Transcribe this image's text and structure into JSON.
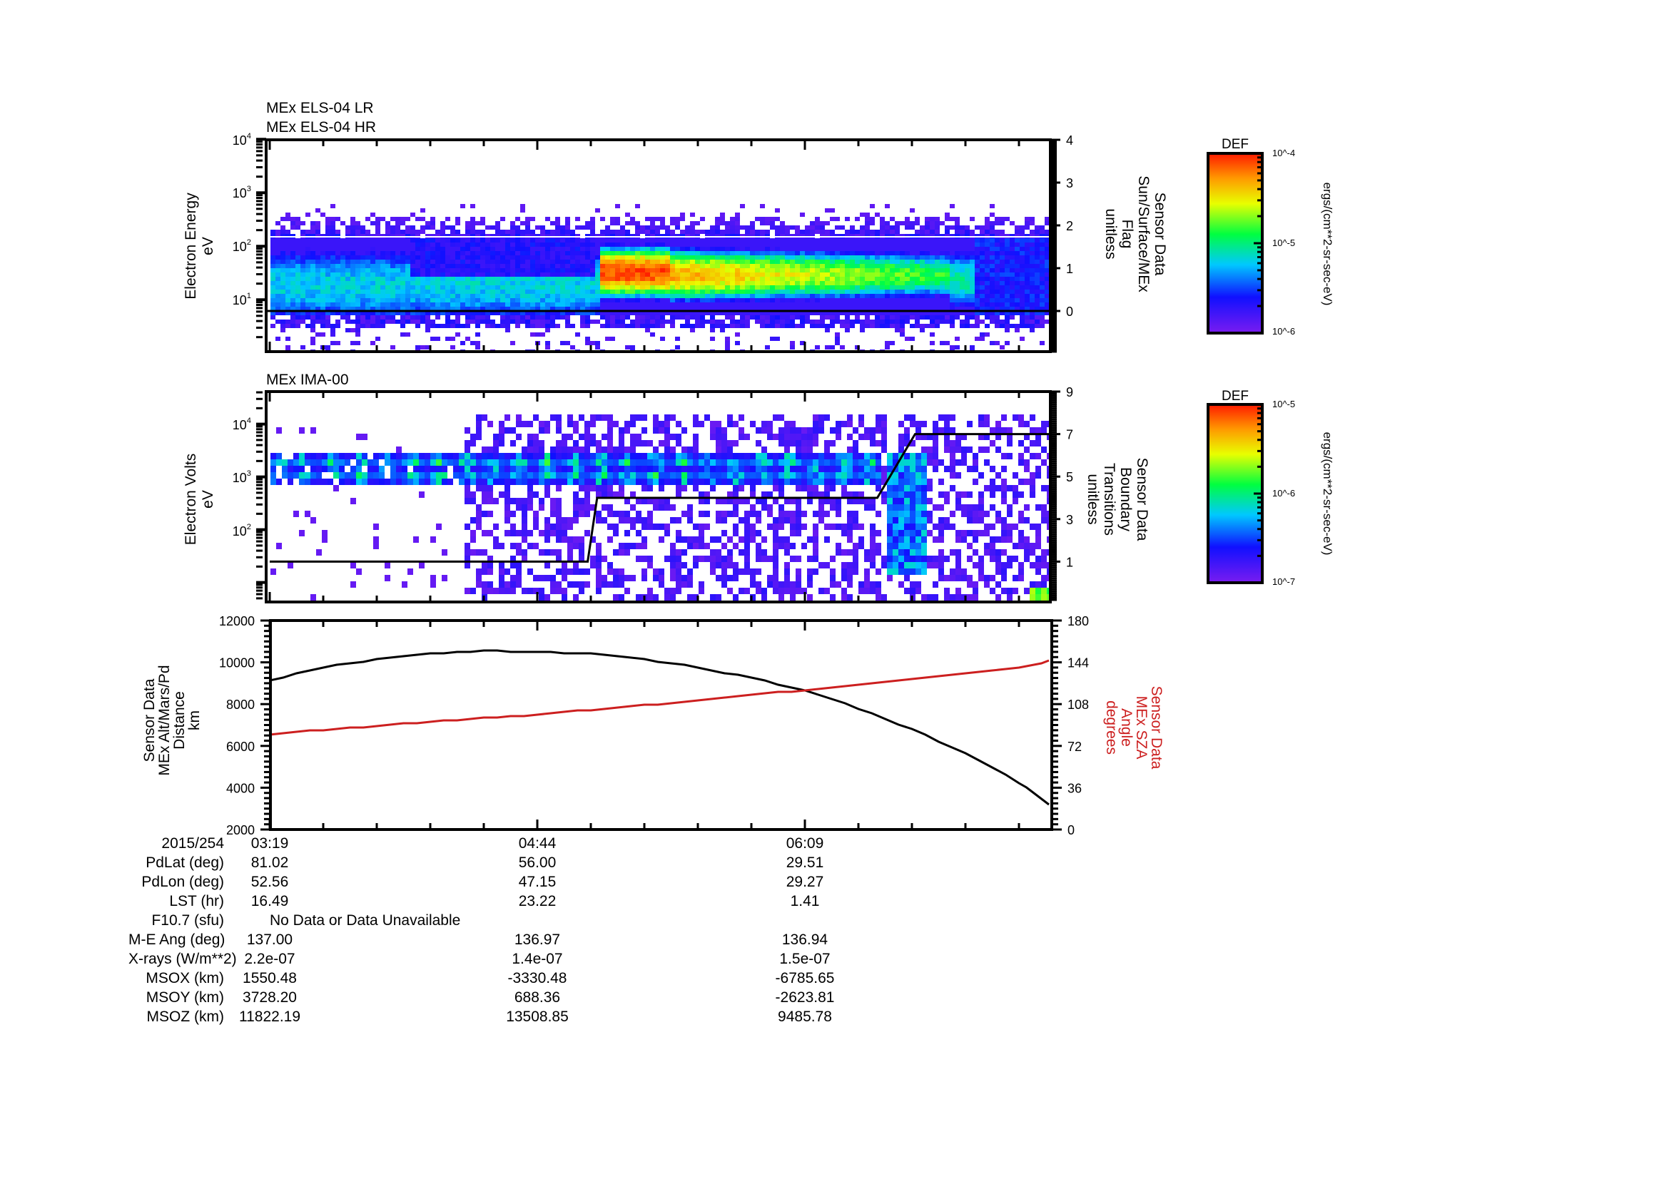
{
  "chart_data": [
    {
      "type": "heatmap",
      "title": [
        "MEx ELS-04 LR",
        "MEx ELS-04 HR"
      ],
      "ylabel": [
        "Electron Energy",
        "eV"
      ],
      "yscale": "log",
      "ylim": [
        1,
        10000
      ],
      "yticks": [
        "10^1",
        "10^2",
        "10^3",
        "10^4"
      ],
      "y2label": [
        "Sensor Data",
        "Sun/Surface/MEx",
        "Flag",
        "unitless"
      ],
      "y2lim": [
        -0.95,
        4
      ],
      "y2ticks": [
        0,
        1,
        2,
        3,
        4
      ],
      "flag_line_value": 0,
      "lr_hr_boundary_eV": 150,
      "colorbar": {
        "label": "DEF",
        "units": "ergs/(cm**2-sr-sec-eV)",
        "min": "10^-6",
        "mid": "10^-5",
        "max": "10^-4"
      },
      "features": [
        {
          "t_start": "03:19",
          "t_end": "04:03",
          "band_eV": [
            6,
            150
          ],
          "peak_eV": 20,
          "level": "cyan-green"
        },
        {
          "t_start": "04:03",
          "t_end": "05:00",
          "band_eV": [
            6,
            150
          ],
          "peak_eV": 15,
          "level": "blue above 30 eV, green below"
        },
        {
          "t_start": "05:05",
          "t_end": "05:25",
          "band_eV": [
            8,
            150
          ],
          "peak_eV": 40,
          "level": "red (max)"
        },
        {
          "t_start": "05:25",
          "t_end": "06:55",
          "band_eV": [
            8,
            120
          ],
          "peak_eV": 35,
          "level": "orange-yellow decaying to green"
        },
        {
          "t_start": "06:55",
          "t_end": "07:27",
          "band_eV": [
            6,
            150
          ],
          "level": "blue"
        }
      ]
    },
    {
      "type": "heatmap",
      "title": "MEx IMA-00",
      "ylabel": [
        "Electron Volts",
        "eV"
      ],
      "yscale": "log",
      "ylim": [
        4.3,
        42000
      ],
      "yticks": [
        "10^2",
        "10^3",
        "10^4"
      ],
      "y2label": [
        "Sensor Data",
        "Boundary",
        "Transitions",
        "unitless"
      ],
      "y2lim": [
        -1,
        9
      ],
      "y2ticks": [
        1,
        3,
        5,
        7,
        9
      ],
      "boundary_transitions": {
        "x": [
          "03:19",
          "04:20",
          "04:47",
          "05:00",
          "05:03",
          "06:32",
          "06:44",
          "07:27"
        ],
        "y": [
          1,
          1,
          1,
          1,
          4,
          4,
          7,
          7
        ]
      },
      "colorbar": {
        "label": "DEF",
        "units": "ergs/(cm**2-sr-sec-eV)",
        "min": "10^-7",
        "mid": "10^-6",
        "max": "10^-5"
      },
      "features": [
        {
          "t_start": "03:19",
          "t_end": "04:20",
          "band_eV": [
            900,
            3500
          ],
          "level": "blue-green solar wind beam"
        },
        {
          "t_start": "04:20",
          "t_end": "06:30",
          "band_eV": [
            900,
            3500
          ],
          "level": "cyan-green, scattered background"
        },
        {
          "t_start": "06:35",
          "t_end": "06:45",
          "band_eV": [
            10,
            3000
          ],
          "level": "cyan descending"
        },
        {
          "t_start": "07:20",
          "t_end": "07:27",
          "band_eV": [
            6,
            9
          ],
          "level": "yellow-green"
        }
      ]
    },
    {
      "type": "line",
      "ylabel": [
        "Sensor Data",
        "MEx Alt/Mars/Pd",
        "Distance",
        "km"
      ],
      "ylim": [
        2000,
        12000
      ],
      "yticks": [
        2000,
        4000,
        6000,
        8000,
        10000,
        12000
      ],
      "y2label": [
        "Sensor Data",
        "MEx SZA",
        "Angle",
        "degrees"
      ],
      "y2lim": [
        0,
        180
      ],
      "y2ticks": [
        0,
        36,
        72,
        108,
        144,
        180
      ],
      "x": [
        "03:19",
        "03:36",
        "03:53",
        "04:10",
        "04:27",
        "04:44",
        "05:01",
        "05:18",
        "05:35",
        "05:52",
        "06:09",
        "06:26",
        "06:43",
        "07:00",
        "07:17",
        "07:27"
      ],
      "series": [
        {
          "name": "MEx Alt/Mars/Pd Distance (km)",
          "color": "#000000",
          "axis": "left",
          "values": [
            9150,
            9750,
            10150,
            10400,
            10550,
            10500,
            10400,
            10150,
            9750,
            9250,
            8650,
            7800,
            6800,
            5650,
            4250,
            3220
          ]
        },
        {
          "name": "MEx SZA Angle (degrees)",
          "color": "#cc1f1f",
          "axis": "right",
          "values": [
            82,
            86,
            89,
            93,
            96,
            99,
            103,
            107,
            111,
            116,
            120,
            125,
            130,
            135,
            140,
            145
          ]
        }
      ]
    }
  ],
  "time_axis": {
    "major_labels": [
      "03:19",
      "04:44",
      "06:09"
    ],
    "date": "2015/254"
  },
  "ephemeris": {
    "rows": [
      {
        "label": "2015/254",
        "values": [
          "03:19",
          "04:44",
          "06:09"
        ]
      },
      {
        "label": "PdLat (deg)",
        "values": [
          "81.02",
          "56.00",
          "29.51"
        ]
      },
      {
        "label": "PdLon (deg)",
        "values": [
          "52.56",
          "47.15",
          "29.27"
        ]
      },
      {
        "label": "LST (hr)",
        "values": [
          "16.49",
          "23.22",
          "1.41"
        ]
      },
      {
        "label": "F10.7 (sfu)",
        "note": "No Data or Data Unavailable"
      },
      {
        "label": "M-E Ang (deg)",
        "values": [
          "137.00",
          "136.97",
          "136.94"
        ]
      },
      {
        "label": "X-rays (W/m**2)",
        "values": [
          "2.2e-07",
          "1.4e-07",
          "1.5e-07"
        ]
      },
      {
        "label": "MSOX (km)",
        "values": [
          "1550.48",
          "-3330.48",
          "-6785.65"
        ]
      },
      {
        "label": "MSOY (km)",
        "values": [
          "3728.20",
          "688.36",
          "-2623.81"
        ]
      },
      {
        "label": "MSOZ (km)",
        "values": [
          "11822.19",
          "13508.85",
          "9485.78"
        ]
      }
    ]
  },
  "labels": {
    "p1_title1": "MEx ELS-04 LR",
    "p1_title2": "MEx ELS-04 HR",
    "p2_title": "MEx IMA-00",
    "def": "DEF",
    "units": "ergs/(cm**2-sr-sec-eV)"
  },
  "colors": {
    "sza_red": "#cc1f1f",
    "axis": "#000000"
  }
}
